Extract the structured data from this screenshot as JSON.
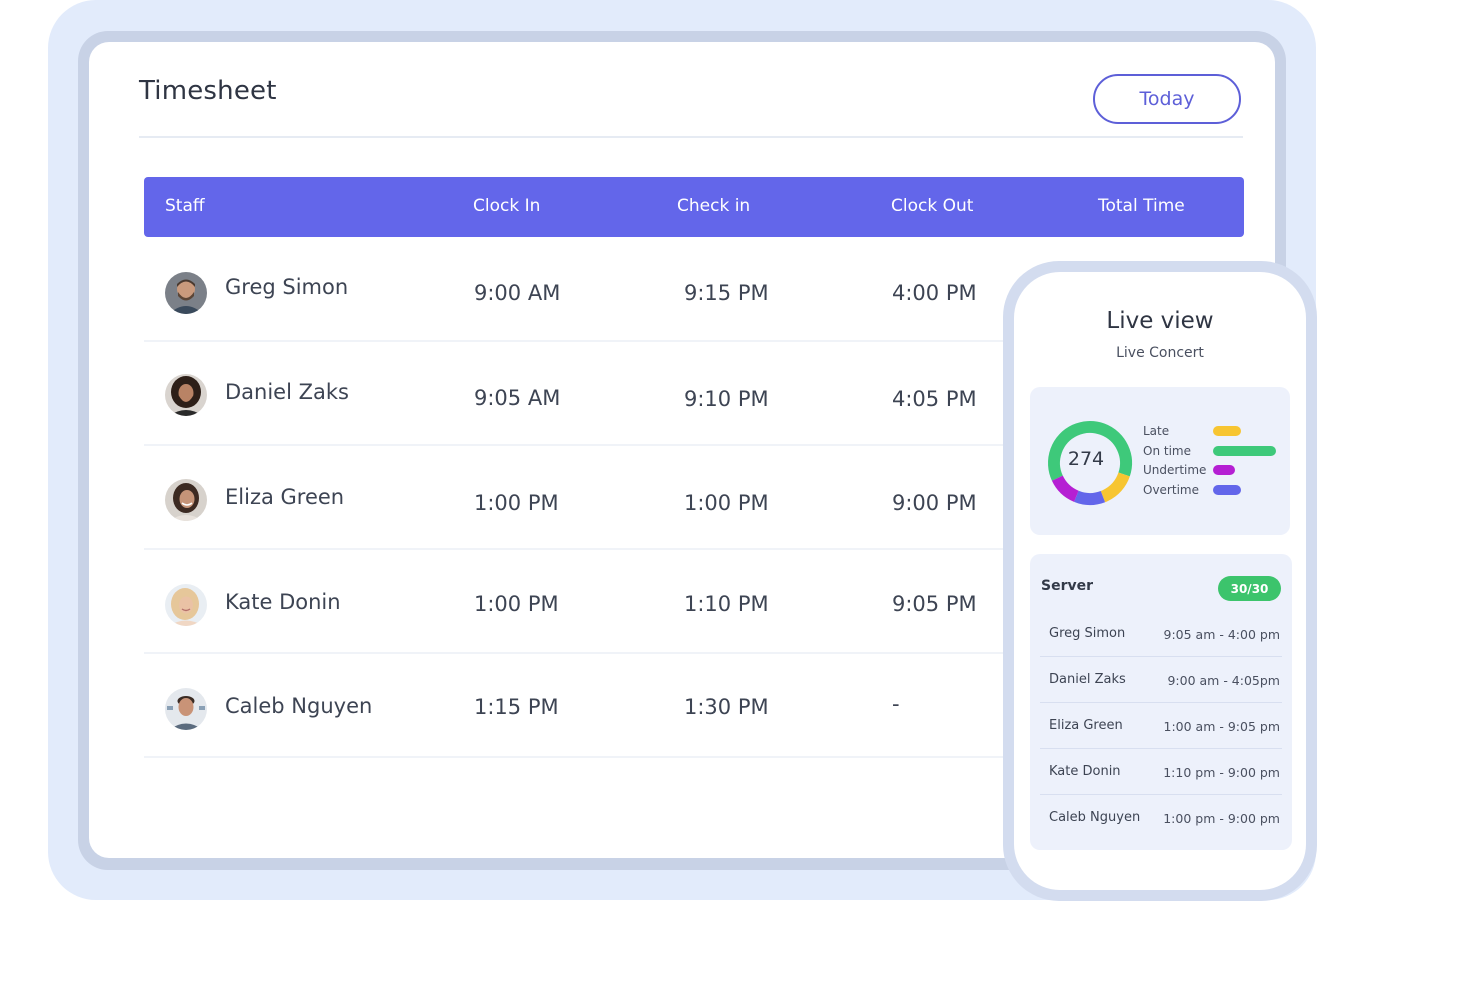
{
  "timesheet": {
    "title": "Timesheet",
    "today_button": "Today",
    "columns": [
      "Staff",
      "Clock In",
      "Check in",
      "Clock Out",
      "Total Time"
    ],
    "rows": [
      {
        "name": "Greg Simon",
        "clock_in": "9:00 AM",
        "check_in": "9:15 PM",
        "clock_out": "4:00 PM"
      },
      {
        "name": "Daniel Zaks",
        "clock_in": "9:05 AM",
        "check_in": "9:10 PM",
        "clock_out": "4:05 PM"
      },
      {
        "name": "Eliza Green",
        "clock_in": "1:00 PM",
        "check_in": "1:00 PM",
        "clock_out": "9:00 PM"
      },
      {
        "name": "Kate Donin",
        "clock_in": "1:00 PM",
        "check_in": "1:10 PM",
        "clock_out": "9:05 PM"
      },
      {
        "name": "Caleb Nguyen",
        "clock_in": "1:15 PM",
        "check_in": "1:30 PM",
        "clock_out": "-"
      }
    ]
  },
  "live_view": {
    "title": "Live view",
    "subtitle": "Live Concert",
    "total": "274",
    "legend": [
      {
        "label": "Late",
        "color": "#f7c531"
      },
      {
        "label": "On time",
        "color": "#3ec97a"
      },
      {
        "label": "Undertime",
        "color": "#b51fd3"
      },
      {
        "label": "Overtime",
        "color": "#6366ea"
      }
    ],
    "donut_segments": [
      {
        "label": "On time",
        "fraction": 0.62,
        "color": "#3ec97a"
      },
      {
        "label": "Late",
        "fraction": 0.14,
        "color": "#f7c531"
      },
      {
        "label": "Overtime",
        "fraction": 0.12,
        "color": "#6366ea"
      },
      {
        "label": "Undertime",
        "fraction": 0.12,
        "color": "#b51fd3"
      }
    ],
    "server": {
      "title": "Server",
      "badge": "30/30",
      "rows": [
        {
          "name": "Greg Simon",
          "time": "9:05 am - 4:00 pm"
        },
        {
          "name": "Daniel Zaks",
          "time": "9:00 am - 4:05pm"
        },
        {
          "name": "Eliza Green",
          "time": "1:00 am - 9:05 pm"
        },
        {
          "name": "Kate Donin",
          "time": "1:10 pm - 9:00 pm"
        },
        {
          "name": "Caleb Nguyen",
          "time": "1:00 pm - 9:00 pm"
        }
      ]
    }
  }
}
